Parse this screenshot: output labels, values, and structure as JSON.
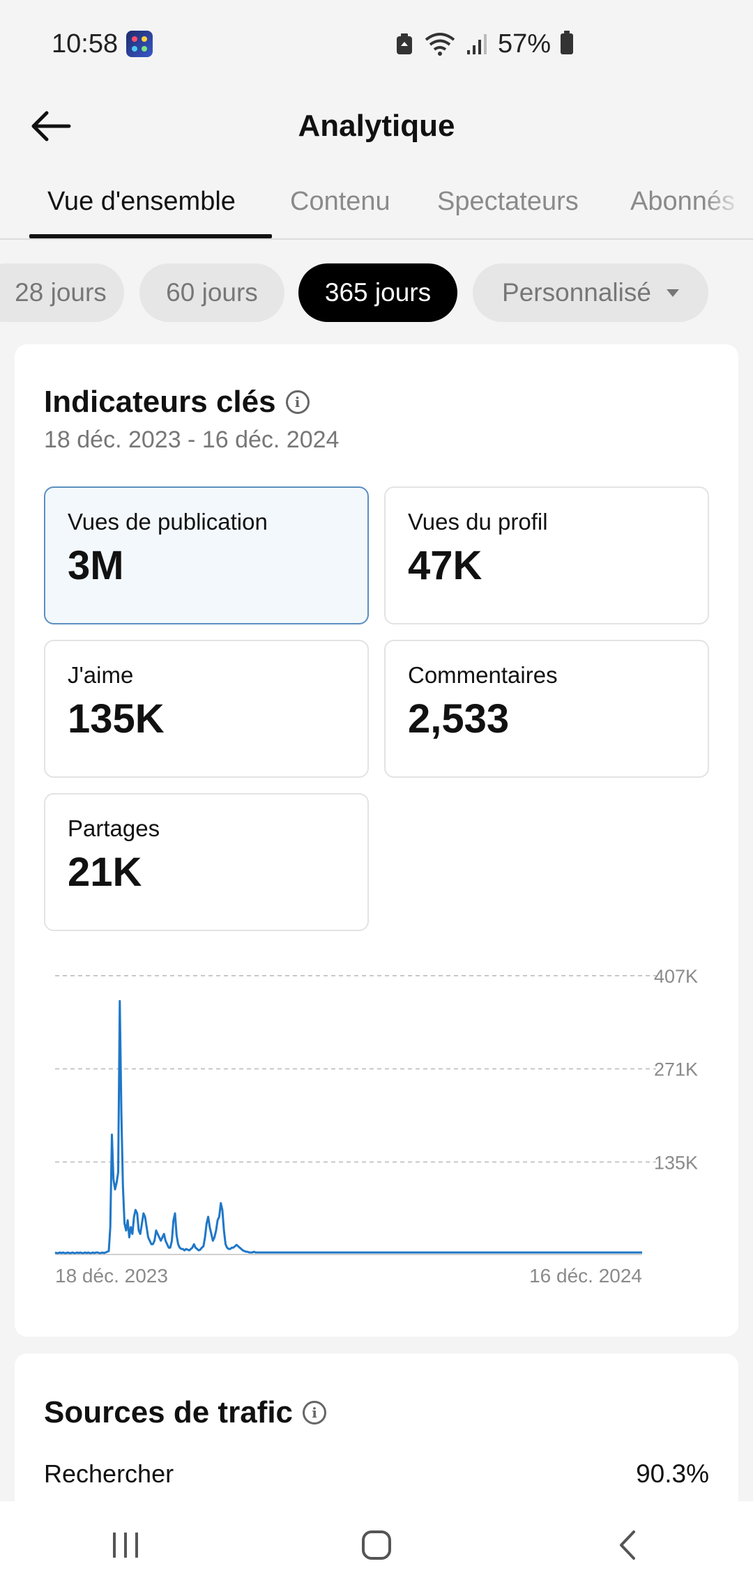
{
  "status_bar": {
    "time": "10:58",
    "battery": "57%"
  },
  "header": {
    "title": "Analytique"
  },
  "tabs": [
    {
      "label": "Vue d'ensemble",
      "active": true
    },
    {
      "label": "Contenu",
      "active": false
    },
    {
      "label": "Spectateurs",
      "active": false
    },
    {
      "label": "Abonnés",
      "active": false
    }
  ],
  "periods": [
    {
      "label": "28 jours",
      "active": false
    },
    {
      "label": "60 jours",
      "active": false
    },
    {
      "label": "365 jours",
      "active": true
    },
    {
      "label": "Personnalisé",
      "active": false
    }
  ],
  "key_metrics": {
    "title": "Indicateurs clés",
    "date_range": "18 déc. 2023 - 16 déc. 2024",
    "items": [
      {
        "label": "Vues de publication",
        "value": "3M",
        "selected": true
      },
      {
        "label": "Vues du profil",
        "value": "47K",
        "selected": false
      },
      {
        "label": "J'aime",
        "value": "135K",
        "selected": false
      },
      {
        "label": "Commentaires",
        "value": "2,533",
        "selected": false
      },
      {
        "label": "Partages",
        "value": "21K",
        "selected": false
      }
    ]
  },
  "chart_data": {
    "type": "line",
    "title": "",
    "x_labels": [
      "18 déc. 2023",
      "16 déc. 2024"
    ],
    "y_ticks": [
      "407K",
      "271K",
      "135K"
    ],
    "y_tick_values": [
      407,
      271,
      135
    ],
    "ylim": [
      0,
      407
    ],
    "grid": true,
    "color": "#1f77c8",
    "series": [
      {
        "name": "",
        "values": [
          3,
          2,
          2,
          3,
          2,
          3,
          2,
          2,
          3,
          2,
          2,
          3,
          2,
          2,
          3,
          2,
          3,
          2,
          2,
          3,
          2,
          3,
          2,
          2,
          3,
          2,
          3,
          3,
          2,
          2,
          3,
          2,
          3,
          4,
          5,
          40,
          175,
          110,
          95,
          105,
          120,
          370,
          205,
          100,
          45,
          35,
          50,
          25,
          40,
          30,
          55,
          65,
          60,
          35,
          30,
          45,
          60,
          55,
          40,
          25,
          20,
          15,
          15,
          20,
          35,
          30,
          25,
          20,
          25,
          30,
          20,
          15,
          10,
          10,
          20,
          50,
          60,
          28,
          15,
          10,
          8,
          8,
          6,
          8,
          7,
          6,
          8,
          10,
          15,
          10,
          8,
          6,
          7,
          10,
          12,
          25,
          45,
          55,
          40,
          30,
          20,
          25,
          35,
          50,
          55,
          75,
          65,
          35,
          15,
          10,
          8,
          8,
          10,
          10,
          12,
          14,
          12,
          10,
          8,
          6,
          5,
          4,
          4,
          3,
          3,
          3,
          4,
          3,
          3,
          3,
          3,
          3,
          3,
          3,
          3,
          3,
          3,
          3,
          3,
          3,
          3,
          3,
          3,
          3,
          3,
          3,
          3,
          3,
          3,
          3,
          3,
          3,
          3,
          3,
          3,
          3,
          3,
          3,
          3,
          3,
          3,
          3,
          3,
          3,
          3,
          3,
          3,
          3,
          3,
          3,
          3,
          3,
          3,
          3,
          3,
          3,
          3,
          3,
          3,
          3,
          3,
          3,
          3,
          3,
          3,
          3,
          3,
          3,
          3,
          3,
          3,
          3,
          3,
          3,
          3,
          3,
          3,
          3,
          3,
          3,
          3,
          3,
          3,
          3,
          3,
          3,
          3,
          3,
          3,
          3,
          3,
          3,
          3,
          3,
          3,
          3,
          3,
          3,
          3,
          3,
          3,
          3,
          3,
          3,
          3,
          3,
          3,
          3,
          3,
          3,
          3,
          3,
          3,
          3,
          3,
          3,
          3,
          3,
          3,
          3,
          3,
          3,
          3,
          3,
          3,
          3,
          3,
          3,
          3,
          3,
          3,
          3,
          3,
          3,
          3,
          3,
          3,
          3,
          3,
          3,
          3,
          3,
          3,
          3,
          3,
          3,
          3,
          3,
          3,
          3,
          3,
          3,
          3,
          3,
          3,
          3,
          3,
          3,
          3,
          3,
          3,
          3,
          3,
          3,
          3,
          3,
          3,
          3,
          3,
          3,
          3,
          3,
          3,
          3,
          3,
          3,
          3,
          3,
          3,
          3,
          3,
          3,
          3,
          3,
          3,
          3,
          3,
          3,
          3,
          3,
          3,
          3,
          3,
          3,
          3,
          3,
          3,
          3,
          3,
          3,
          3,
          3,
          3,
          3,
          3,
          3,
          3,
          3,
          3,
          3,
          3,
          3,
          3,
          3,
          3,
          3,
          3,
          3,
          3,
          3,
          3,
          3,
          3,
          3,
          3,
          3,
          3,
          3,
          3,
          3,
          3,
          3,
          3,
          3,
          3,
          3,
          3,
          3,
          3,
          3,
          3,
          3,
          3,
          3,
          3,
          3,
          3,
          3,
          3,
          3,
          3,
          3,
          3
        ]
      }
    ]
  },
  "traffic_sources": {
    "title": "Sources de trafic",
    "items": [
      {
        "label": "Rechercher",
        "value": "90.3%"
      }
    ]
  },
  "icons": {
    "back": "arrow-left-icon",
    "info": "info-icon",
    "nav_recents": "recents-icon",
    "nav_home": "home-icon",
    "nav_back": "chevron-left-icon"
  }
}
